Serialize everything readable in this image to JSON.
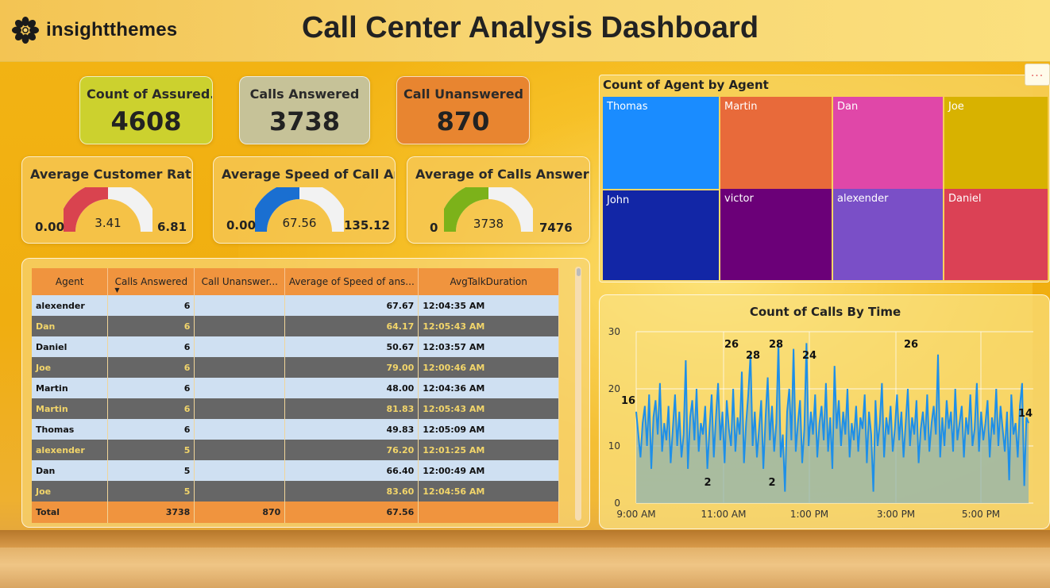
{
  "header": {
    "brand": "insightthemes",
    "title": "Call Center Analysis Dashboard"
  },
  "kpis": [
    {
      "label": "Count of Assured...",
      "value": "4608",
      "color": "#ccd12e"
    },
    {
      "label": "Calls Answered",
      "value": "3738",
      "color": "#c6c298"
    },
    {
      "label": "Call Unanswered",
      "value": "870",
      "color": "#e88530"
    }
  ],
  "gauges": [
    {
      "label": "Average Customer Rati...",
      "min": "0.00",
      "value": "3.41",
      "max": "6.81",
      "fraction": 0.5,
      "color": "#d9434f"
    },
    {
      "label": "Average Speed of Call An...",
      "min": "0.00",
      "value": "67.56",
      "max": "135.12",
      "fraction": 0.5,
      "color": "#1a6fd1"
    },
    {
      "label": "Average of Calls Answered",
      "min": "0",
      "value": "3738",
      "max": "7476",
      "fraction": 0.5,
      "color": "#7cb21a"
    }
  ],
  "table": {
    "columns": [
      "Agent",
      "Calls Answered",
      "Call Unanswer...",
      "Average of Speed of ans...",
      "AvgTalkDuration"
    ],
    "rows": [
      {
        "agent": "alexender",
        "answered": "6",
        "unanswered": "",
        "speed": "67.67",
        "talk": "12:04:35 AM"
      },
      {
        "agent": "Dan",
        "answered": "6",
        "unanswered": "",
        "speed": "64.17",
        "talk": "12:05:43 AM"
      },
      {
        "agent": "Daniel",
        "answered": "6",
        "unanswered": "",
        "speed": "50.67",
        "talk": "12:03:57 AM"
      },
      {
        "agent": "Joe",
        "answered": "6",
        "unanswered": "",
        "speed": "79.00",
        "talk": "12:00:46 AM"
      },
      {
        "agent": "Martin",
        "answered": "6",
        "unanswered": "",
        "speed": "48.00",
        "talk": "12:04:36 AM"
      },
      {
        "agent": "Martin",
        "answered": "6",
        "unanswered": "",
        "speed": "81.83",
        "talk": "12:05:43 AM"
      },
      {
        "agent": "Thomas",
        "answered": "6",
        "unanswered": "",
        "speed": "49.83",
        "talk": "12:05:09 AM"
      },
      {
        "agent": "alexender",
        "answered": "5",
        "unanswered": "",
        "speed": "76.20",
        "talk": "12:01:25 AM"
      },
      {
        "agent": "Dan",
        "answered": "5",
        "unanswered": "",
        "speed": "66.40",
        "talk": "12:00:49 AM"
      },
      {
        "agent": "Joe",
        "answered": "5",
        "unanswered": "",
        "speed": "83.60",
        "talk": "12:04:56 AM"
      }
    ],
    "total": {
      "agent": "Total",
      "answered": "3738",
      "unanswered": "870",
      "speed": "67.56",
      "talk": ""
    }
  },
  "treemap": {
    "title": "Count of Agent by Agent",
    "more_label": "...",
    "tiles": [
      {
        "name": "Thomas",
        "color": "#1a8cff"
      },
      {
        "name": "Martin",
        "color": "#e86a3a"
      },
      {
        "name": "Dan",
        "color": "#e047a8"
      },
      {
        "name": "Joe",
        "color": "#d8b200"
      },
      {
        "name": "John",
        "color": "#1226a6"
      },
      {
        "name": "victor",
        "color": "#6b0078"
      },
      {
        "name": "alexender",
        "color": "#7a4fc7"
      },
      {
        "name": "Daniel",
        "color": "#db4155"
      }
    ]
  },
  "chart_data": {
    "type": "area",
    "title": "Count of Calls By Time",
    "xlabel": "",
    "ylabel": "",
    "ylim": [
      0,
      30
    ],
    "yticks": [
      0,
      10,
      20,
      30
    ],
    "xticks": [
      "9:00 AM",
      "11:00 AM",
      "1:00 PM",
      "3:00 PM",
      "5:00 PM"
    ],
    "xrange_hours": [
      9.0,
      18.2
    ],
    "line_color": "#1e8fe8",
    "fill_color": "#8fb3b0",
    "values": [
      16,
      12,
      8,
      14,
      17,
      10,
      19,
      6,
      15,
      18,
      12,
      21,
      9,
      14,
      11,
      17,
      7,
      13,
      19,
      10,
      16,
      8,
      12,
      25,
      6,
      15,
      18,
      11,
      20,
      9,
      14,
      12,
      17,
      6,
      13,
      19,
      8,
      15,
      21,
      11,
      16,
      7,
      18,
      13,
      10,
      20,
      9,
      15,
      12,
      23,
      7,
      14,
      19,
      26,
      10,
      16,
      8,
      13,
      18,
      6,
      15,
      22,
      11,
      17,
      9,
      14,
      28,
      8,
      12,
      2,
      16,
      20,
      11,
      27,
      9,
      14,
      18,
      7,
      13,
      28,
      10,
      16,
      12,
      19,
      8,
      14,
      17,
      11,
      21,
      9,
      15,
      6,
      24,
      13,
      18,
      10,
      16,
      12,
      20,
      8,
      14,
      11,
      17,
      9,
      15,
      13,
      19,
      7,
      16,
      12,
      2,
      18,
      10,
      14,
      21,
      8,
      15,
      12,
      17,
      9,
      13,
      19,
      11,
      16,
      8,
      14,
      20,
      10,
      15,
      12,
      18,
      7,
      13,
      16,
      11,
      19,
      9,
      14,
      17,
      12,
      26,
      8,
      15,
      10,
      18,
      13,
      16,
      9,
      20,
      11,
      14,
      17,
      8,
      15,
      12,
      19,
      10,
      13,
      21,
      9,
      16,
      11,
      14,
      18,
      8,
      15,
      12,
      20,
      10,
      17,
      13,
      9,
      16,
      4,
      19,
      12,
      14,
      8,
      17,
      21,
      3,
      15,
      14
    ],
    "annotations": [
      {
        "text": "16"
      },
      {
        "text": "26"
      },
      {
        "text": "28"
      },
      {
        "text": "28"
      },
      {
        "text": "24"
      },
      {
        "text": "2"
      },
      {
        "text": "2"
      },
      {
        "text": "26"
      },
      {
        "text": "14"
      }
    ]
  }
}
